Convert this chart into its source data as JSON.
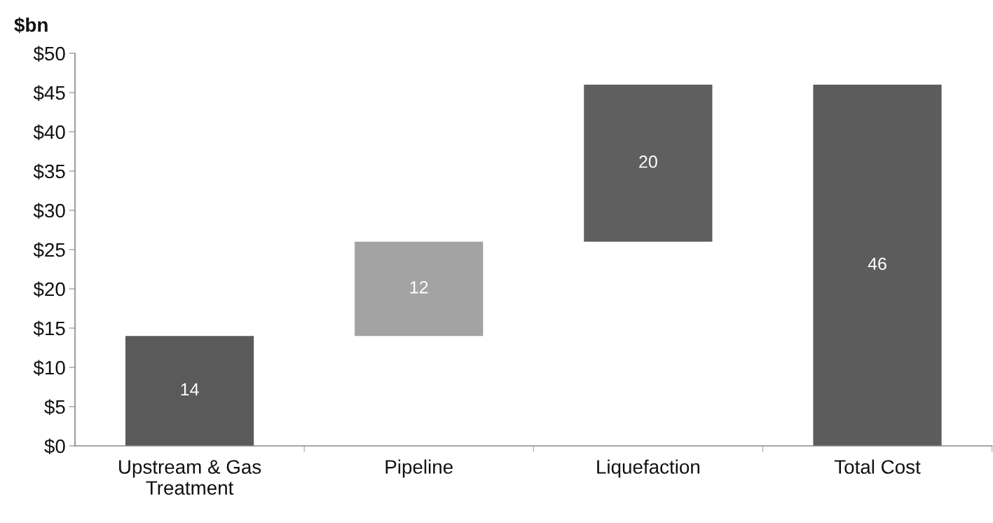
{
  "chart_data": {
    "type": "bar",
    "ylabel": "$bn",
    "categories": [
      "Upstream & Gas\nTreatment",
      "Pipeline",
      "Liquefaction",
      "Total Cost"
    ],
    "values": [
      14,
      12,
      20,
      46
    ],
    "base": [
      0,
      14,
      26,
      0
    ],
    "colors": [
      "#5a5a5a",
      "#a3a3a3",
      "#5f5f5f",
      "#5c5c5c"
    ],
    "ylim": [
      0,
      50
    ],
    "yticks": [
      {
        "value": 0,
        "label": "$0"
      },
      {
        "value": 5,
        "label": "$5"
      },
      {
        "value": 10,
        "label": "$10"
      },
      {
        "value": 15,
        "label": "$15"
      },
      {
        "value": 20,
        "label": "$20"
      },
      {
        "value": 25,
        "label": "$25"
      },
      {
        "value": 30,
        "label": "$30"
      },
      {
        "value": 35,
        "label": "$35"
      },
      {
        "value": 40,
        "label": "$40"
      },
      {
        "value": 45,
        "label": "$45"
      },
      {
        "value": 50,
        "label": "$50"
      }
    ],
    "data_labels": true,
    "grid": false,
    "legend": false
  }
}
